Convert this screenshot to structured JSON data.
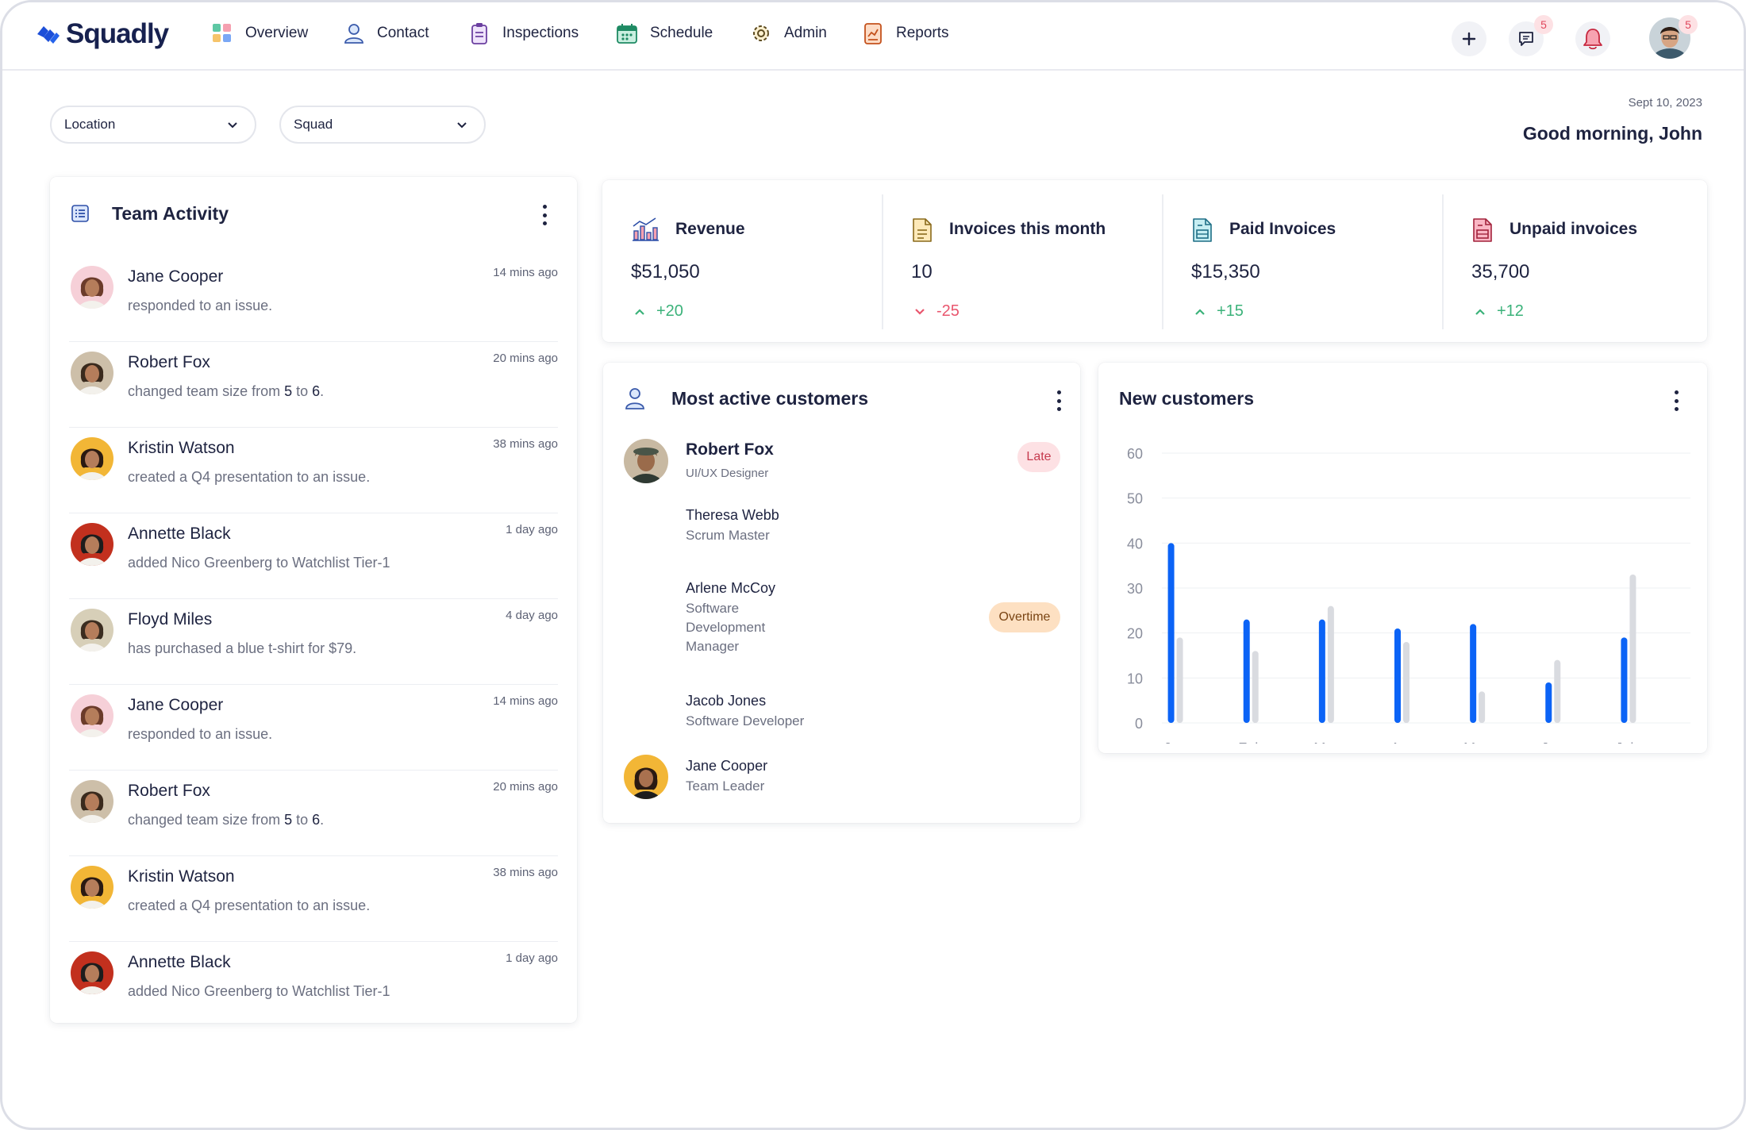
{
  "app": {
    "brand": "Squadly"
  },
  "nav": {
    "items": [
      {
        "label": "Overview",
        "icon": "overview-icon"
      },
      {
        "label": "Contact",
        "icon": "contact-icon"
      },
      {
        "label": "Inspections",
        "icon": "clipboard-icon"
      },
      {
        "label": "Schedule",
        "icon": "calendar-icon"
      },
      {
        "label": "Admin",
        "icon": "gear-icon"
      },
      {
        "label": "Reports",
        "icon": "report-icon"
      }
    ],
    "messages_badge": "5",
    "avatar_badge": "5"
  },
  "filters": {
    "location": "Location",
    "squad": "Squad"
  },
  "header": {
    "date": "Sept 10, 2023",
    "greeting": "Good morning, John"
  },
  "team_activity": {
    "title": "Team Activity",
    "items": [
      {
        "name": "Jane Cooper",
        "desc": "responded to an issue.",
        "time": "14 mins ago"
      },
      {
        "name": "Robert Fox",
        "desc_pre": "changed team size from ",
        "from": "5",
        "mid": " to ",
        "to": "6",
        "post": ".",
        "time": "20 mins ago"
      },
      {
        "name": "Kristin Watson",
        "desc": "created a Q4 presentation to an issue.",
        "time": "38 mins ago"
      },
      {
        "name": "Annette Black",
        "desc": "added Nico Greenberg to Watchlist Tier-1",
        "time": "1 day ago"
      },
      {
        "name": "Floyd Miles",
        "desc": "has purchased a blue t-shirt for $79.",
        "time": "4 day ago"
      },
      {
        "name": "Jane Cooper",
        "desc": "responded to an issue.",
        "time": "14 mins ago"
      },
      {
        "name": "Robert Fox",
        "desc_pre": "changed team size from ",
        "from": "5",
        "mid": " to ",
        "to": "6",
        "post": ".",
        "time": "20 mins ago"
      },
      {
        "name": "Kristin Watson",
        "desc": "created a Q4 presentation to an issue.",
        "time": "38 mins ago"
      },
      {
        "name": "Annette Black",
        "desc": "added Nico Greenberg to Watchlist Tier-1",
        "time": "1 day ago"
      }
    ]
  },
  "stats": [
    {
      "label": "Revenue",
      "value": "$51,050",
      "delta": "+20",
      "trend": "up"
    },
    {
      "label": "Invoices this month",
      "value": "10",
      "delta": "-25",
      "trend": "down"
    },
    {
      "label": "Paid Invoices",
      "value": "$15,350",
      "delta": "+15",
      "trend": "up"
    },
    {
      "label": "Unpaid invoices",
      "value": "35,700",
      "delta": "+12",
      "trend": "up"
    }
  ],
  "customers": {
    "title": "Most active customers",
    "items": [
      {
        "name": "Robert Fox",
        "role": "UI/UX Designer",
        "status": "Late"
      },
      {
        "name": "Theresa Webb",
        "role": "Scrum Master",
        "status": ""
      },
      {
        "name": "Arlene McCoy",
        "role_lines": [
          "Software",
          "Development",
          "Manager"
        ],
        "status": "Overtime"
      },
      {
        "name": "Jacob Jones",
        "role": "Software Developer",
        "status": ""
      },
      {
        "name": "Jane Cooper",
        "role": "Team Leader",
        "status": ""
      }
    ]
  },
  "new_customers": {
    "title": "New customers"
  },
  "colors": {
    "primary": "#0b63f6",
    "secondary": "#d9dbe0",
    "up": "#3bb27a",
    "down": "#e9566e",
    "late_bg": "#fde1e4",
    "overtime_bg": "#fde0c2"
  },
  "chart_data": {
    "type": "bar",
    "categories": [
      "Jan",
      "Feb",
      "Mar",
      "Apr",
      "May",
      "Jun",
      "July"
    ],
    "series": [
      {
        "values": [
          40,
          23,
          23,
          21,
          22,
          9,
          19
        ]
      },
      {
        "values": [
          19,
          16,
          26,
          18,
          7,
          14,
          33
        ]
      }
    ],
    "yticks": [
      0,
      10,
      20,
      30,
      40,
      50,
      60
    ],
    "ylim": [
      0,
      60
    ],
    "grid": true,
    "legend": "none"
  }
}
